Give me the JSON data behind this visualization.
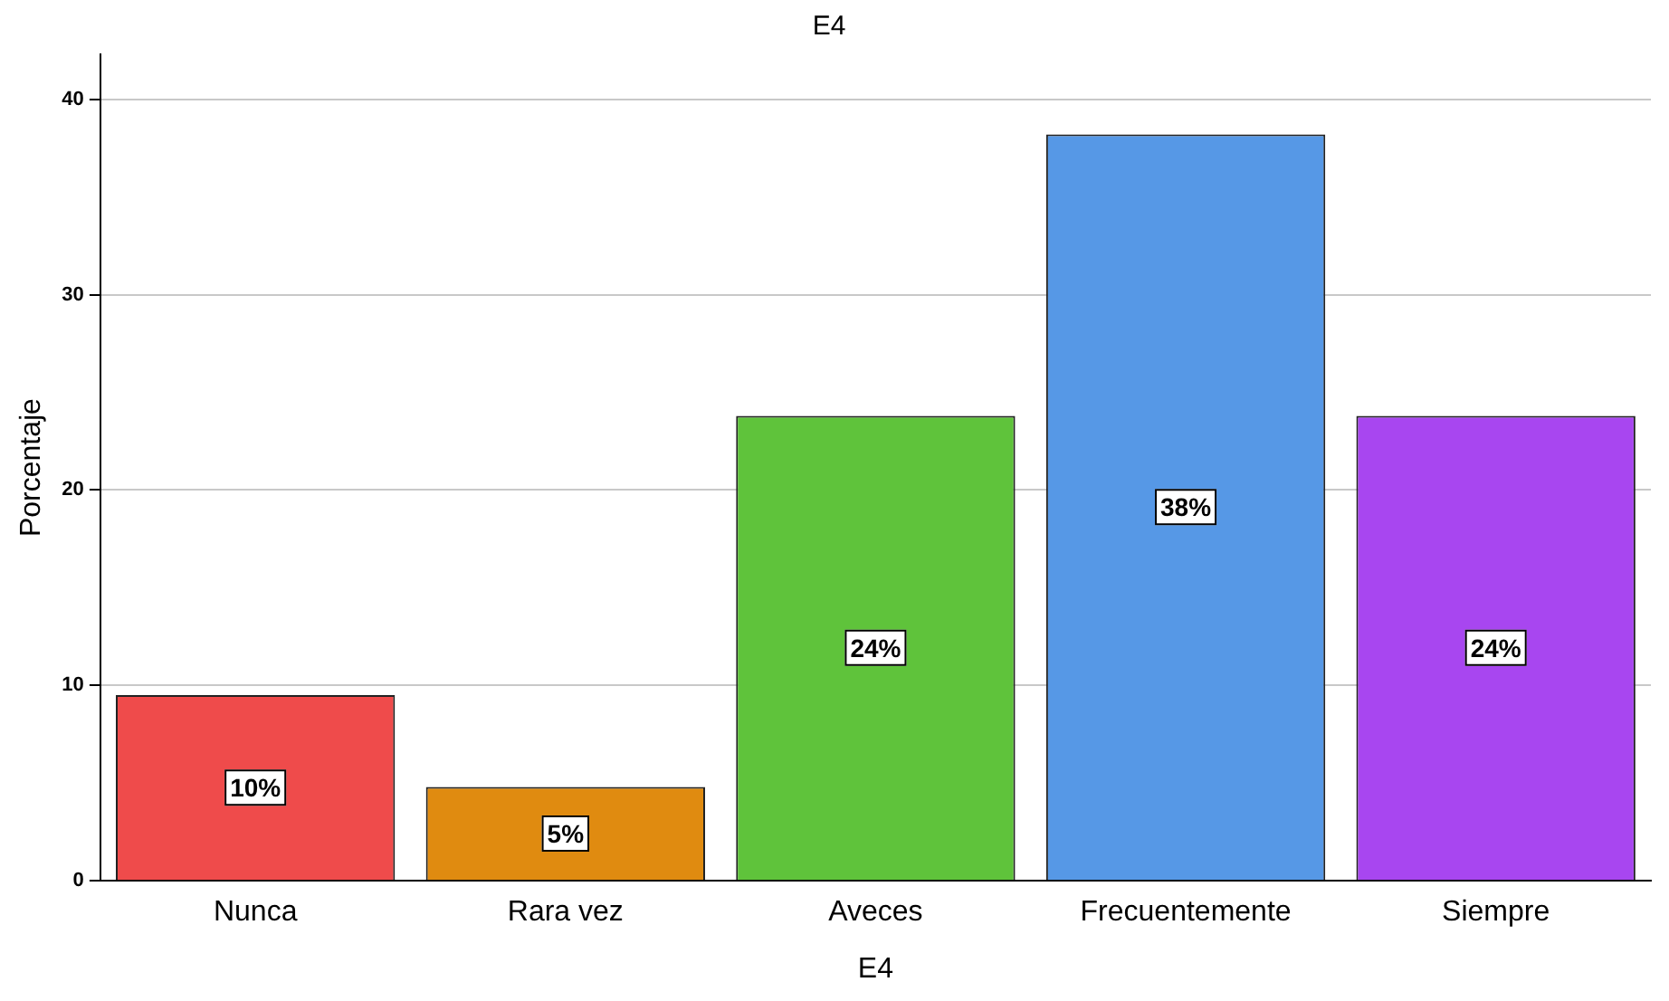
{
  "chart_data": {
    "type": "bar",
    "title": "E4",
    "xlabel": "E4",
    "ylabel": "Porcentaje",
    "categories": [
      "Nunca",
      "Rara vez",
      "Aveces",
      "Frecuentemente",
      "Siempre"
    ],
    "values": [
      9.5,
      4.8,
      23.8,
      38.2,
      23.8
    ],
    "colors": [
      "#ef4b4b",
      "#e08b10",
      "#5fc33b",
      "#5698e6",
      "#a846f0"
    ],
    "value_labels": [
      "10%",
      "5%",
      "24%",
      "38%",
      "24%"
    ],
    "ylim": [
      0,
      42.3
    ],
    "yticks": [
      0,
      10,
      20,
      30,
      40
    ],
    "grid": "y",
    "legend": false
  }
}
